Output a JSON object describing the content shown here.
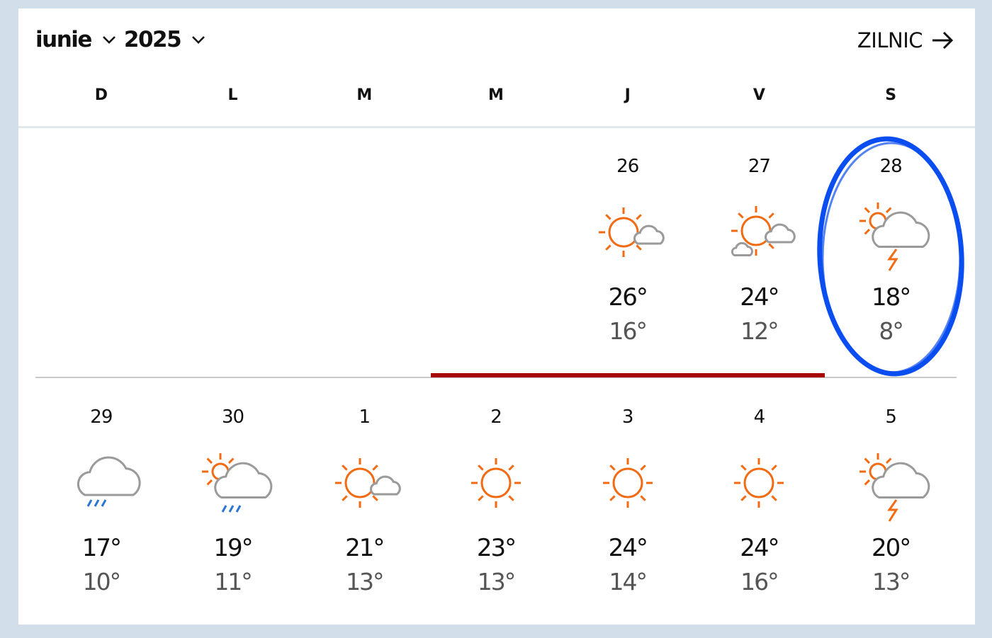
{
  "header": {
    "month": "iunie",
    "year": "2025",
    "daily_label": "ZILNIC"
  },
  "weekdays": [
    "D",
    "L",
    "M",
    "M",
    "J",
    "V",
    "S"
  ],
  "weeks": [
    [
      null,
      null,
      null,
      null,
      {
        "day": "26",
        "icon": "sun-cloud",
        "hi": "26°",
        "lo": "16°"
      },
      {
        "day": "27",
        "icon": "sun-clouds",
        "hi": "24°",
        "lo": "12°"
      },
      {
        "day": "28",
        "icon": "sun-cloud-storm",
        "hi": "18°",
        "lo": "8°"
      }
    ],
    [
      {
        "day": "29",
        "icon": "cloud-rain",
        "hi": "17°",
        "lo": "10°"
      },
      {
        "day": "30",
        "icon": "sun-cloud-rain",
        "hi": "19°",
        "lo": "11°"
      },
      {
        "day": "1",
        "icon": "sun-cloud",
        "hi": "21°",
        "lo": "13°"
      },
      {
        "day": "2",
        "icon": "sun",
        "hi": "23°",
        "lo": "13°"
      },
      {
        "day": "3",
        "icon": "sun",
        "hi": "24°",
        "lo": "14°"
      },
      {
        "day": "4",
        "icon": "sun",
        "hi": "24°",
        "lo": "16°"
      },
      {
        "day": "5",
        "icon": "sun-cloud-storm",
        "hi": "20°",
        "lo": "13°"
      }
    ]
  ],
  "colors": {
    "sun": "#f26a12",
    "cloud": "#9a9a9a",
    "rain": "#2a74d6",
    "highlight_bar": "#a80000",
    "annotation": "#0a4df0"
  }
}
